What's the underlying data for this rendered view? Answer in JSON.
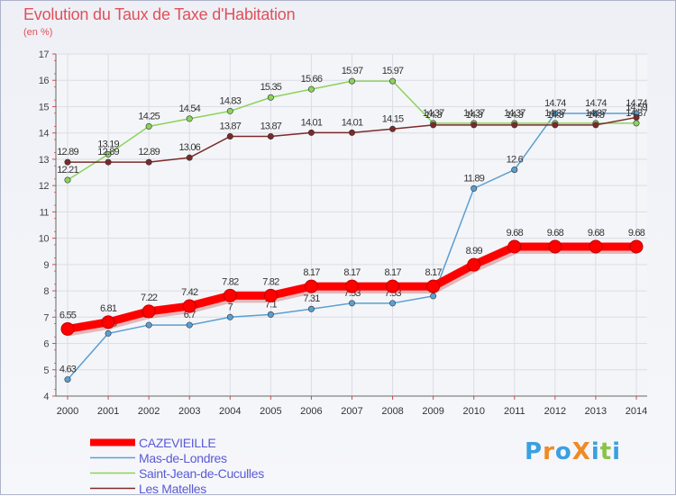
{
  "title": "Evolution du Taux de Taxe d'Habitation",
  "unit_label": "(en %)",
  "logo": {
    "text": "ProXiti",
    "letters": [
      {
        "ch": "P",
        "color": "#3aa0e0"
      },
      {
        "ch": "r",
        "color": "#f08a24"
      },
      {
        "ch": "o",
        "color": "#3aa0e0"
      },
      {
        "ch": "X",
        "color": "#f08a24"
      },
      {
        "ch": "i",
        "color": "#3aa0e0"
      },
      {
        "ch": "t",
        "color": "#8bc34a"
      },
      {
        "ch": "i",
        "color": "#3aa0e0"
      }
    ]
  },
  "chart_data": {
    "type": "line",
    "title": "Evolution du Taux de Taxe d'Habitation",
    "ylabel": "(en %)",
    "xlabel": "",
    "ylim": [
      4,
      17
    ],
    "yticks": [
      "4",
      "5",
      "6",
      "7",
      "8",
      "9",
      "10",
      "11",
      "12",
      "13",
      "14",
      "15",
      "16",
      "17"
    ],
    "x": [
      "2000",
      "2001",
      "2002",
      "2003",
      "2004",
      "2005",
      "2006",
      "2007",
      "2008",
      "2009",
      "2010",
      "2011",
      "2012",
      "2013",
      "2014"
    ],
    "grid": true,
    "legend_position": "bottom-left",
    "series": [
      {
        "name": "Mas-de-Londres",
        "color": "#5b9fd1",
        "values": [
          4.63,
          6.38,
          6.7,
          6.7,
          7,
          7.1,
          7.31,
          7.53,
          7.53,
          7.8,
          11.89,
          12.6,
          14.74,
          14.74,
          14.74
        ],
        "labels": [
          "4.63",
          "6.38",
          "6.7",
          "6.7",
          "7",
          "7.1",
          "7.31",
          "7.53",
          "7.53",
          "7.8",
          "11.89",
          "12.6",
          "14.74",
          "14.74",
          "14.74"
        ]
      },
      {
        "name": "Saint-Jean-de-Cuculles",
        "color": "#8cd35a",
        "values": [
          12.21,
          13.19,
          14.25,
          14.54,
          14.83,
          15.35,
          15.66,
          15.97,
          15.97,
          14.37,
          14.37,
          14.37,
          14.37,
          14.37,
          14.37
        ],
        "labels": [
          "12.21",
          "13.19",
          "14.25",
          "14.54",
          "14.83",
          "15.35",
          "15.66",
          "15.97",
          "15.97",
          "14.37",
          "14.37",
          "14.37",
          "14.37",
          "14.37",
          "14.37"
        ]
      },
      {
        "name": "Les Matelles",
        "color": "#7a2a2a",
        "values": [
          12.89,
          12.89,
          12.89,
          13.06,
          13.87,
          13.87,
          14.01,
          14.01,
          14.15,
          14.3,
          14.3,
          14.3,
          14.3,
          14.3,
          14.59
        ],
        "labels": [
          "12.89",
          "12.89",
          "12.89",
          "13.06",
          "13.87",
          "13.87",
          "14.01",
          "14.01",
          "14.15",
          "14.3",
          "14.3",
          "14.3",
          "14.3",
          "14.3",
          "14.59"
        ]
      },
      {
        "name": "CAZEVIEILLE",
        "color": "#ff0000",
        "values": [
          6.55,
          6.81,
          7.22,
          7.42,
          7.82,
          7.82,
          8.17,
          8.17,
          8.17,
          8.17,
          8.99,
          9.68,
          9.68,
          9.68,
          9.68
        ],
        "labels": [
          "6.55",
          "6.81",
          "7.22",
          "7.42",
          "7.82",
          "7.82",
          "8.17",
          "8.17",
          "8.17",
          "8.17",
          "8.99",
          "9.68",
          "9.68",
          "9.68",
          "9.68"
        ]
      }
    ]
  },
  "legend": [
    {
      "label": "CAZEVIEILLE",
      "color": "#ff0000",
      "thick": true
    },
    {
      "label": "Mas-de-Londres",
      "color": "#5b9fd1",
      "thick": false
    },
    {
      "label": "Saint-Jean-de-Cuculles",
      "color": "#8cd35a",
      "thick": false
    },
    {
      "label": "Les Matelles",
      "color": "#7a2a2a",
      "thick": false
    }
  ]
}
